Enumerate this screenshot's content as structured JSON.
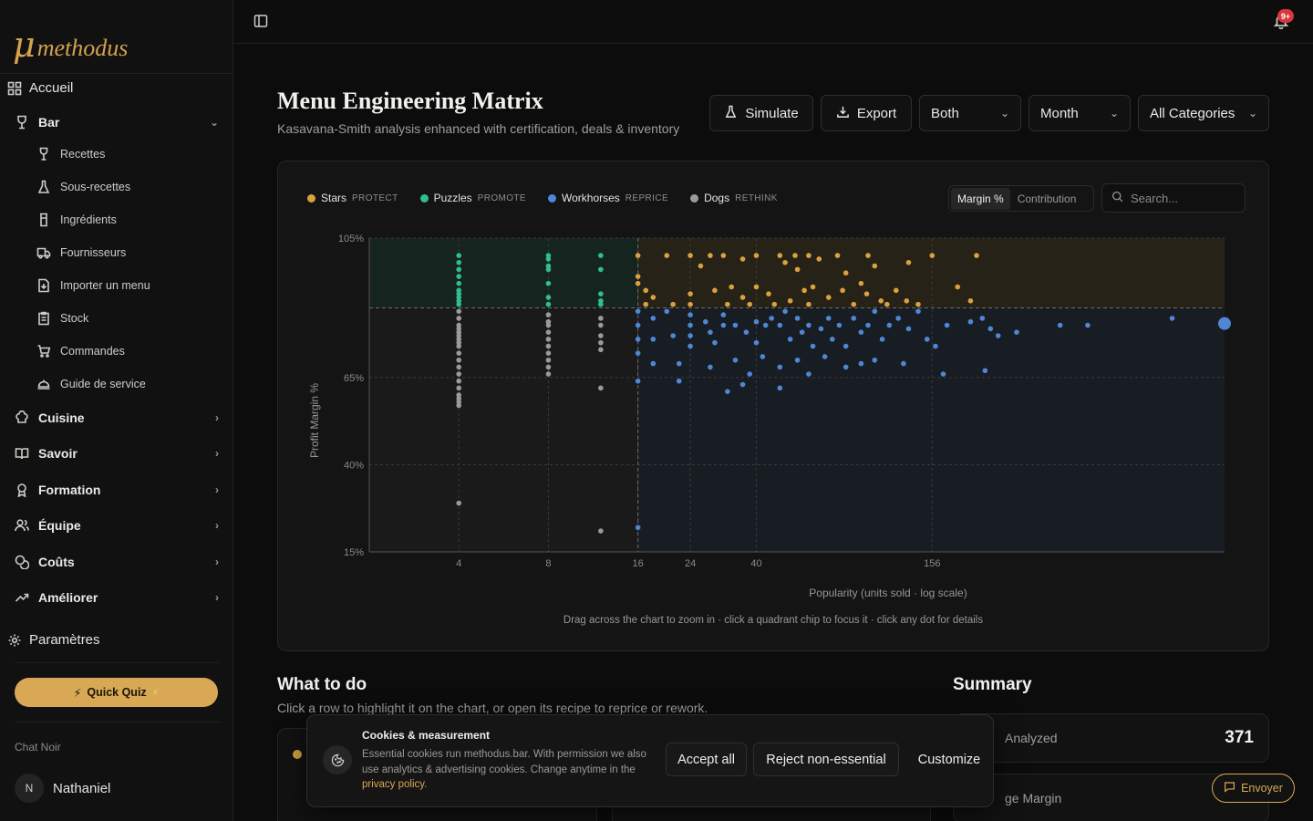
{
  "brand": {
    "logo_mark": "μ",
    "logo_text": "methodus"
  },
  "sidebar": {
    "home": "Accueil",
    "bar": "Bar",
    "bar_items": [
      "Recettes",
      "Sous-recettes",
      "Ingrédients",
      "Fournisseurs",
      "Importer un menu",
      "Stock",
      "Commandes",
      "Guide de service"
    ],
    "groups": [
      "Cuisine",
      "Savoir",
      "Formation",
      "Équipe",
      "Coûts",
      "Améliorer"
    ],
    "settings": "Paramètres",
    "quiz": "Quick Quiz",
    "workspace": "Chat Noir",
    "user_initial": "N",
    "user_name": "Nathaniel"
  },
  "topbar": {
    "notif_badge": "9+"
  },
  "header": {
    "title": "Menu Engineering Matrix",
    "subtitle": "Kasavana-Smith analysis enhanced with certification, deals & inventory",
    "simulate": "Simulate",
    "export": "Export",
    "filter_type": "Both",
    "filter_period": "Month",
    "filter_category": "All Categories"
  },
  "legend": [
    {
      "name": "Stars",
      "tag": "PROTECT",
      "color": "#d9a23f"
    },
    {
      "name": "Puzzles",
      "tag": "PROMOTE",
      "color": "#2fbf8a"
    },
    {
      "name": "Workhorses",
      "tag": "REPRICE",
      "color": "#4f86d6"
    },
    {
      "name": "Dogs",
      "tag": "RETHINK",
      "color": "#9a9a9a"
    }
  ],
  "toggle": {
    "active": "Margin %",
    "inactive": "Contribution"
  },
  "chart_search_placeholder": "Search...",
  "chart_data": {
    "type": "scatter",
    "xlabel": "Popularity (units sold · log scale)",
    "ylabel": "Profit Margin %",
    "x_scale": "log",
    "x_ticks": [
      4,
      8,
      16,
      24,
      40,
      156
    ],
    "y_ticks": [
      "105%",
      "65%",
      "40%",
      "15%"
    ],
    "ylim": [
      15,
      105
    ],
    "popularity_threshold": 16,
    "margin_threshold": 85,
    "grid": true,
    "series": [
      {
        "name": "Stars",
        "color": "#d9a23f",
        "points": [
          [
            16,
            100
          ],
          [
            20,
            100
          ],
          [
            24,
            100
          ],
          [
            28,
            100
          ],
          [
            31,
            100
          ],
          [
            36,
            99
          ],
          [
            40,
            100
          ],
          [
            48,
            100
          ],
          [
            54,
            100
          ],
          [
            60,
            100
          ],
          [
            75,
            100
          ],
          [
            95,
            100
          ],
          [
            156,
            100
          ],
          [
            220,
            100
          ],
          [
            26,
            97
          ],
          [
            50,
            98
          ],
          [
            55,
            96
          ],
          [
            65,
            99
          ],
          [
            80,
            95
          ],
          [
            100,
            97
          ],
          [
            130,
            98
          ],
          [
            90,
            92
          ],
          [
            17,
            90
          ],
          [
            18,
            88
          ],
          [
            24,
            89
          ],
          [
            29,
            90
          ],
          [
            33,
            91
          ],
          [
            36,
            88
          ],
          [
            44,
            89
          ],
          [
            52,
            87
          ],
          [
            58,
            90
          ],
          [
            62,
            91
          ],
          [
            70,
            88
          ],
          [
            78,
            90
          ],
          [
            85,
            86
          ],
          [
            94,
            89
          ],
          [
            105,
            87
          ],
          [
            118,
            90
          ],
          [
            140,
            86
          ],
          [
            190,
            91
          ],
          [
            210,
            87
          ],
          [
            16,
            94
          ],
          [
            16,
            92
          ],
          [
            17,
            86
          ],
          [
            21,
            86
          ],
          [
            24,
            86
          ],
          [
            32,
            86
          ],
          [
            38,
            86
          ],
          [
            40,
            91
          ],
          [
            46,
            86
          ],
          [
            60,
            86
          ],
          [
            110,
            86
          ],
          [
            128,
            87
          ]
        ]
      },
      {
        "name": "Puzzles",
        "color": "#2fbf8a",
        "points": [
          [
            4,
            100
          ],
          [
            4,
            98
          ],
          [
            4,
            96
          ],
          [
            4,
            94
          ],
          [
            4,
            92
          ],
          [
            4,
            90
          ],
          [
            4,
            89
          ],
          [
            4,
            88
          ],
          [
            4,
            87
          ],
          [
            4,
            86
          ],
          [
            8,
            100
          ],
          [
            8,
            99
          ],
          [
            8,
            97
          ],
          [
            8,
            96
          ],
          [
            8,
            92
          ],
          [
            8,
            88
          ],
          [
            8,
            86
          ],
          [
            12,
            100
          ],
          [
            12,
            96
          ],
          [
            12,
            89
          ],
          [
            12,
            87
          ],
          [
            12,
            86
          ]
        ]
      },
      {
        "name": "Workhorses",
        "color": "#4f86d6",
        "points": [
          [
            16,
            84
          ],
          [
            16,
            80
          ],
          [
            16,
            76
          ],
          [
            16,
            72
          ],
          [
            16,
            64
          ],
          [
            16,
            22
          ],
          [
            18,
            82
          ],
          [
            18,
            76
          ],
          [
            18,
            69
          ],
          [
            20,
            84
          ],
          [
            21,
            77
          ],
          [
            24,
            83
          ],
          [
            24,
            80
          ],
          [
            24,
            77
          ],
          [
            24,
            74
          ],
          [
            27,
            81
          ],
          [
            28,
            78
          ],
          [
            29,
            75
          ],
          [
            31,
            83
          ],
          [
            31,
            80
          ],
          [
            34,
            80
          ],
          [
            37,
            78
          ],
          [
            40,
            81
          ],
          [
            40,
            75
          ],
          [
            43,
            80
          ],
          [
            45,
            82
          ],
          [
            48,
            80
          ],
          [
            50,
            84
          ],
          [
            52,
            76
          ],
          [
            55,
            82
          ],
          [
            57,
            78
          ],
          [
            60,
            80
          ],
          [
            62,
            74
          ],
          [
            66,
            79
          ],
          [
            70,
            82
          ],
          [
            72,
            76
          ],
          [
            76,
            80
          ],
          [
            80,
            74
          ],
          [
            85,
            82
          ],
          [
            90,
            78
          ],
          [
            95,
            80
          ],
          [
            100,
            84
          ],
          [
            106,
            76
          ],
          [
            112,
            80
          ],
          [
            120,
            82
          ],
          [
            130,
            79
          ],
          [
            140,
            84
          ],
          [
            150,
            76
          ],
          [
            160,
            74
          ],
          [
            175,
            80
          ],
          [
            210,
            81
          ],
          [
            230,
            82
          ],
          [
            245,
            79
          ],
          [
            260,
            77
          ],
          [
            300,
            78
          ],
          [
            420,
            80
          ],
          [
            520,
            80
          ],
          [
            1000,
            82
          ],
          [
            22,
            69
          ],
          [
            28,
            68
          ],
          [
            34,
            70
          ],
          [
            38,
            66
          ],
          [
            42,
            71
          ],
          [
            48,
            68
          ],
          [
            55,
            70
          ],
          [
            60,
            66
          ],
          [
            68,
            71
          ],
          [
            80,
            68
          ],
          [
            90,
            69
          ],
          [
            100,
            70
          ],
          [
            125,
            69
          ],
          [
            170,
            66
          ],
          [
            235,
            67
          ],
          [
            32,
            61
          ],
          [
            36,
            63
          ],
          [
            48,
            62
          ],
          [
            22,
            64
          ]
        ]
      },
      {
        "name": "Dogs",
        "color": "#9a9a9a",
        "points": [
          [
            4,
            84
          ],
          [
            4,
            82
          ],
          [
            4,
            80
          ],
          [
            4,
            79
          ],
          [
            4,
            78
          ],
          [
            4,
            77
          ],
          [
            4,
            76
          ],
          [
            4,
            75
          ],
          [
            4,
            74
          ],
          [
            4,
            72
          ],
          [
            4,
            70
          ],
          [
            4,
            68
          ],
          [
            4,
            66
          ],
          [
            4,
            64
          ],
          [
            4,
            62
          ],
          [
            4,
            60
          ],
          [
            4,
            59
          ],
          [
            4,
            58
          ],
          [
            4,
            57
          ],
          [
            4,
            29
          ],
          [
            8,
            83
          ],
          [
            8,
            81
          ],
          [
            8,
            80
          ],
          [
            8,
            78
          ],
          [
            8,
            76
          ],
          [
            8,
            74
          ],
          [
            8,
            72
          ],
          [
            8,
            70
          ],
          [
            8,
            68
          ],
          [
            8,
            66
          ],
          [
            12,
            82
          ],
          [
            12,
            80
          ],
          [
            12,
            77
          ],
          [
            12,
            75
          ],
          [
            12,
            73
          ],
          [
            12,
            62
          ],
          [
            12,
            21
          ]
        ]
      }
    ]
  },
  "chart_hint": "Drag across the chart to zoom in · click a quadrant chip to focus it · click any dot for details",
  "what_to_do": {
    "title": "What to do",
    "subtitle": "Click a row to highlight it on the chart, or open its recipe to reprice or rework."
  },
  "summary": {
    "title": "Summary",
    "analyzed_label": "Analyzed",
    "analyzed_value": "371",
    "margin_label": "ge Margin"
  },
  "cookie": {
    "title": "Cookies & measurement",
    "text": "Essential cookies run methodus.bar. With permission we also use analytics & advertising cookies. Change anytime in the",
    "link": "privacy policy",
    "accept": "Accept all",
    "reject": "Reject non-essential",
    "customize": "Customize"
  },
  "send_button": "Envoyer"
}
